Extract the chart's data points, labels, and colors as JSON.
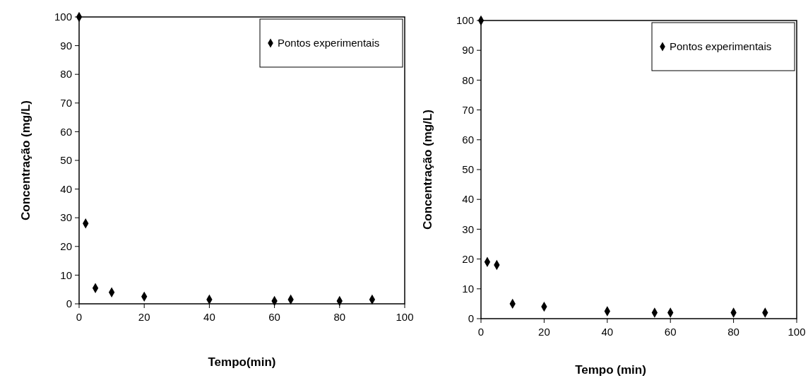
{
  "chart_data": [
    {
      "type": "scatter",
      "xlabel": "Tempo(min)",
      "ylabel": "Concentração (mg/L)",
      "x": [
        0,
        2,
        5,
        10,
        20,
        40,
        60,
        65,
        80,
        90
      ],
      "series": [
        {
          "name": "Pontos experimentais",
          "color": "#000000",
          "values": [
            100,
            28,
            5.5,
            4,
            2.5,
            1.5,
            1,
            1.5,
            1,
            1.5
          ]
        }
      ],
      "xlim": [
        0,
        100
      ],
      "xticks": [
        0,
        20,
        40,
        60,
        80,
        100
      ],
      "ylim": [
        0,
        100
      ],
      "yticks": [
        0,
        10,
        20,
        30,
        40,
        50,
        60,
        70,
        80,
        90,
        100
      ],
      "legend": "top right",
      "marker": "diamond",
      "grid": false
    },
    {
      "type": "scatter",
      "xlabel": "Tempo (min)",
      "ylabel": "Concentração  (mg/L)",
      "x": [
        0,
        2,
        5,
        10,
        20,
        40,
        55,
        60,
        80,
        90
      ],
      "series": [
        {
          "name": "Pontos experimentais",
          "color": "#000000",
          "values": [
            100,
            19,
            18,
            5,
            4,
            2.5,
            2,
            2,
            2,
            2
          ]
        }
      ],
      "xlim": [
        0,
        100
      ],
      "xticks": [
        0,
        20,
        40,
        60,
        80,
        100
      ],
      "ylim": [
        0,
        100
      ],
      "yticks": [
        0,
        10,
        20,
        30,
        40,
        50,
        60,
        70,
        80,
        90,
        100
      ],
      "legend": "top right",
      "marker": "diamond",
      "grid": false
    }
  ]
}
